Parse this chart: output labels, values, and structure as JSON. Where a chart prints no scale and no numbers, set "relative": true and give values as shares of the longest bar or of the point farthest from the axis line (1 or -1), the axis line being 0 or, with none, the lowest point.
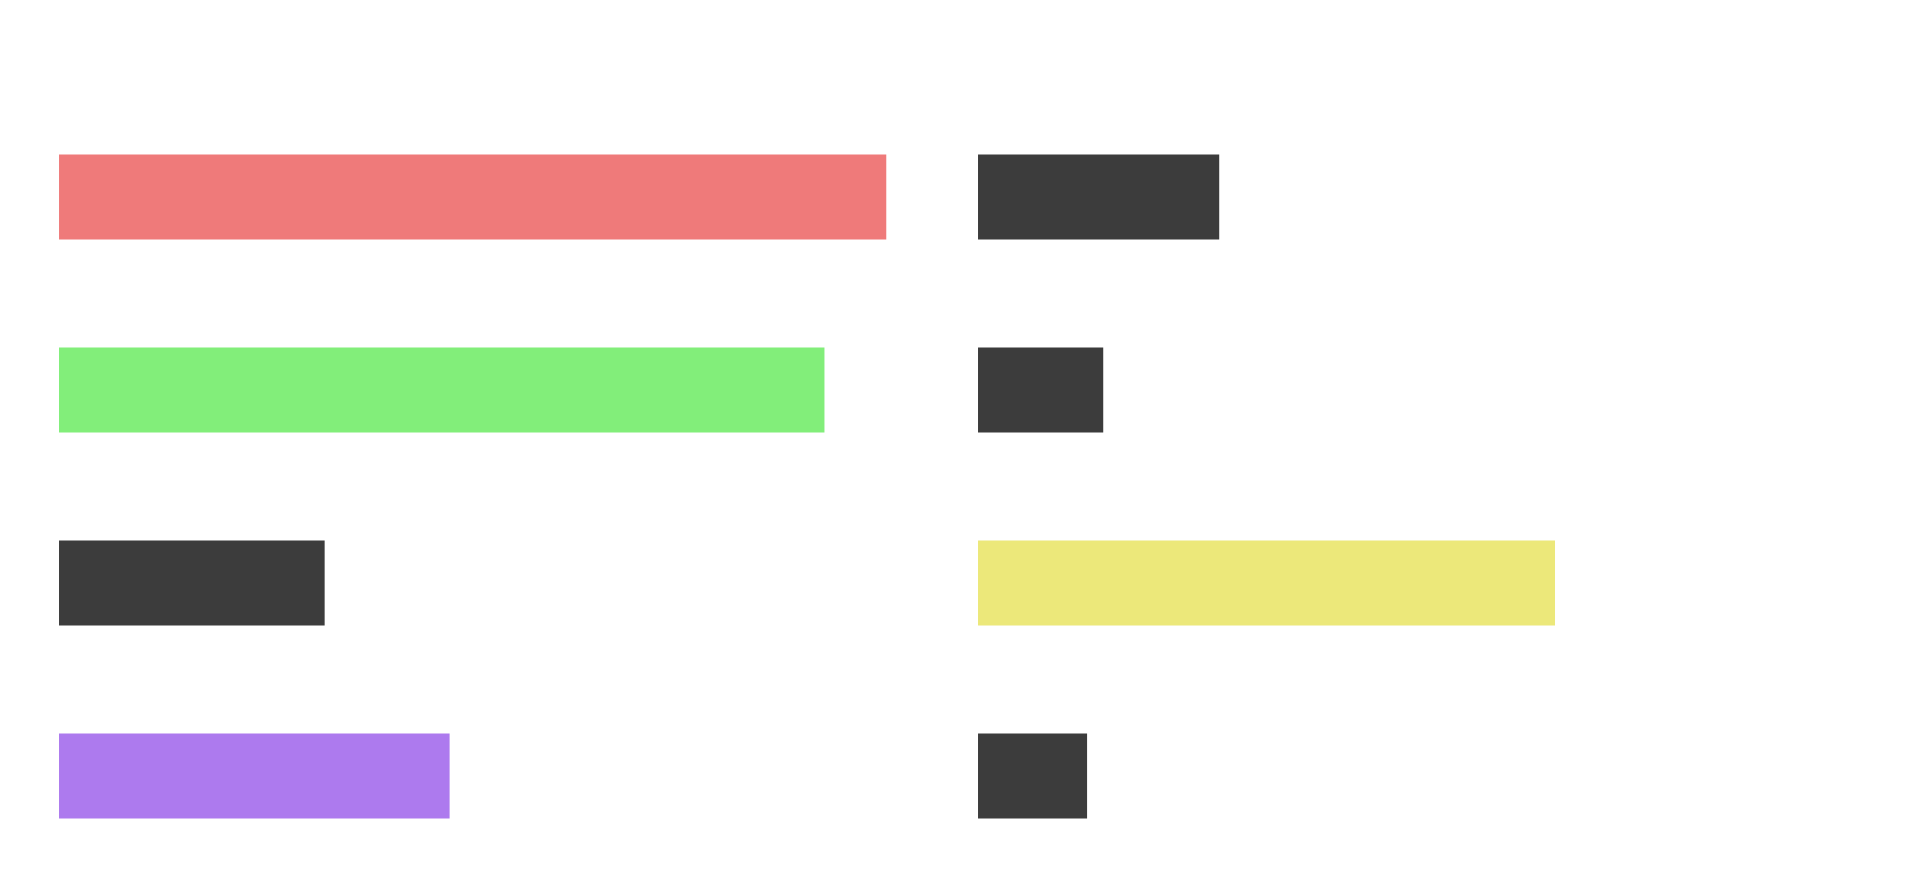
{
  "chart_data": [
    {
      "type": "bar",
      "orientation": "horizontal",
      "relative": true,
      "categories": [
        null,
        null,
        null,
        null
      ],
      "values": [
        1,
        0.925,
        0.321,
        0.472
      ],
      "colors": [
        "#ef7a7a",
        "#82ee7a",
        "#3c3c3c",
        "#ad7aee"
      ]
    },
    {
      "type": "bar",
      "orientation": "horizontal",
      "relative": true,
      "categories": [
        null,
        null,
        null,
        null
      ],
      "values": [
        0.418,
        0.217,
        1,
        0.189
      ],
      "colors": [
        "#3c3c3c",
        "#3c3c3c",
        "#ece87a",
        "#3c3c3c"
      ]
    }
  ]
}
